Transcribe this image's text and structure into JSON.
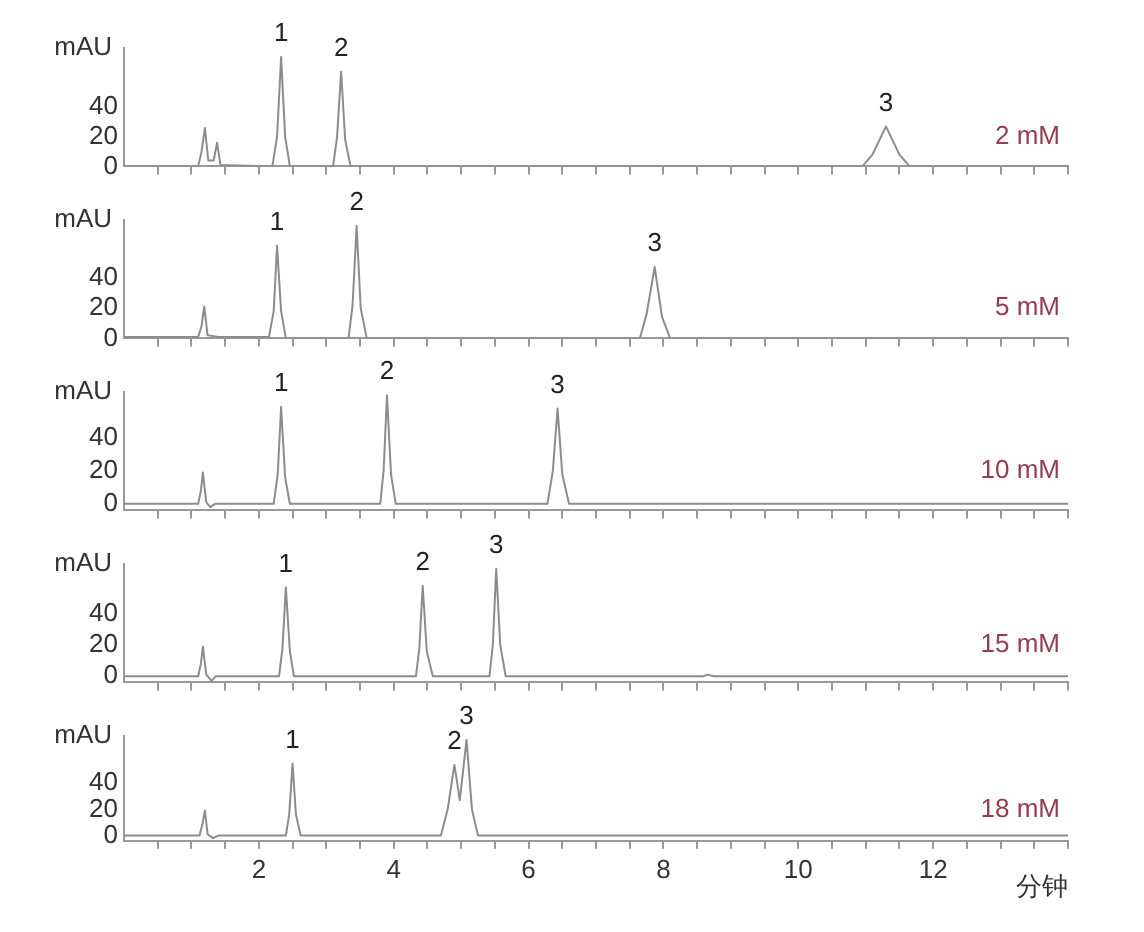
{
  "chart_data": [
    {
      "type": "line",
      "ylabel": "mAU",
      "xlim": [
        0,
        14
      ],
      "ylim": [
        0,
        80
      ],
      "yticks": [
        0,
        20,
        40
      ],
      "tick_labels": "y",
      "grid": false,
      "legend": false,
      "marker": "none",
      "line_style": "solid",
      "xticks": [
        {
          "value": 0.5,
          "label": null
        },
        {
          "value": 1,
          "label": null
        },
        {
          "value": 1.5,
          "label": null
        },
        2,
        {
          "value": 2.5,
          "label": null
        },
        {
          "value": 3,
          "label": null
        },
        {
          "value": 3.5,
          "label": null
        },
        4,
        {
          "value": 4.5,
          "label": null
        },
        {
          "value": 5,
          "label": null
        },
        {
          "value": 5.5,
          "label": null
        },
        6,
        {
          "value": 6.5,
          "label": null
        },
        {
          "value": 7,
          "label": null
        },
        {
          "value": 7.5,
          "label": null
        },
        8,
        {
          "value": 8.5,
          "label": null
        },
        {
          "value": 9,
          "label": null
        },
        {
          "value": 9.5,
          "label": null
        },
        10,
        {
          "value": 10.5,
          "label": null
        },
        {
          "value": 11,
          "label": null
        },
        {
          "value": 11.5,
          "label": null
        },
        12,
        {
          "value": 12.5,
          "label": null
        },
        {
          "value": 13,
          "label": null
        },
        {
          "value": 13.5,
          "label": null
        },
        {
          "value": 14,
          "label": null
        }
      ],
      "series": [
        {
          "color": "#8c8c8c",
          "x": [
            0,
            1.1,
            1.15,
            1.2,
            1.25,
            1.33,
            1.38,
            1.43,
            2.2,
            2.27,
            2.33,
            2.39,
            2.46,
            3.1,
            3.16,
            3.22,
            3.28,
            3.36,
            10.95,
            11.1,
            11.3,
            11.5,
            11.65,
            14
          ],
          "values": [
            0,
            0,
            10,
            26,
            4,
            4,
            16,
            1,
            0,
            20,
            74,
            20,
            0,
            0,
            20,
            64,
            18,
            0,
            0,
            8,
            27,
            8,
            0,
            0
          ]
        }
      ],
      "annotations": [
        "2 mM",
        {
          "text": "1",
          "x": 2.33,
          "y": 74
        },
        {
          "text": "2",
          "x": 3.22,
          "y": 64
        },
        {
          "text": "3",
          "x": 11.3,
          "y": 27
        }
      ]
    },
    {
      "type": "line",
      "ylabel": "mAU",
      "xlim": [
        0,
        14
      ],
      "ylim": [
        0,
        78
      ],
      "yticks": [
        0,
        20,
        40
      ],
      "tick_labels": "y",
      "grid": false,
      "legend": false,
      "marker": "none",
      "line_style": "solid",
      "xticks": [
        {
          "value": 0.5,
          "label": null
        },
        {
          "value": 1,
          "label": null
        },
        {
          "value": 1.5,
          "label": null
        },
        2,
        {
          "value": 2.5,
          "label": null
        },
        {
          "value": 3,
          "label": null
        },
        {
          "value": 3.5,
          "label": null
        },
        4,
        {
          "value": 4.5,
          "label": null
        },
        {
          "value": 5,
          "label": null
        },
        {
          "value": 5.5,
          "label": null
        },
        6,
        {
          "value": 6.5,
          "label": null
        },
        {
          "value": 7,
          "label": null
        },
        {
          "value": 7.5,
          "label": null
        },
        8,
        {
          "value": 8.5,
          "label": null
        },
        {
          "value": 9,
          "label": null
        },
        {
          "value": 9.5,
          "label": null
        },
        10,
        {
          "value": 10.5,
          "label": null
        },
        {
          "value": 11,
          "label": null
        },
        {
          "value": 11.5,
          "label": null
        },
        12,
        {
          "value": 12.5,
          "label": null
        },
        {
          "value": 13,
          "label": null
        },
        {
          "value": 13.5,
          "label": null
        },
        {
          "value": 14,
          "label": null
        }
      ],
      "series": [
        {
          "color": "#8c8c8c",
          "x": [
            0,
            1.1,
            1.15,
            1.19,
            1.24,
            1.4,
            2.15,
            2.22,
            2.27,
            2.33,
            2.4,
            3.33,
            3.39,
            3.45,
            3.51,
            3.6,
            7.65,
            7.75,
            7.87,
            7.98,
            8.1,
            14
          ],
          "values": [
            1,
            1,
            8,
            21,
            2,
            1,
            1,
            18,
            61,
            18,
            0,
            0,
            22,
            74,
            20,
            0,
            0,
            16,
            47,
            14,
            0,
            0
          ]
        }
      ],
      "annotations": [
        "5 mM",
        {
          "text": "1",
          "x": 2.27,
          "y": 61
        },
        {
          "text": "2",
          "x": 3.45,
          "y": 74
        },
        {
          "text": "3",
          "x": 7.87,
          "y": 47
        }
      ]
    },
    {
      "type": "line",
      "ylabel": "mAU",
      "xlim": [
        0,
        14
      ],
      "ylim": [
        -4,
        68
      ],
      "yticks": [
        0,
        20,
        40
      ],
      "tick_labels": "y",
      "grid": false,
      "legend": false,
      "marker": "none",
      "line_style": "solid",
      "xticks": [
        {
          "value": 0.5,
          "label": null
        },
        {
          "value": 1,
          "label": null
        },
        {
          "value": 1.5,
          "label": null
        },
        2,
        {
          "value": 2.5,
          "label": null
        },
        {
          "value": 3,
          "label": null
        },
        {
          "value": 3.5,
          "label": null
        },
        4,
        {
          "value": 4.5,
          "label": null
        },
        {
          "value": 5,
          "label": null
        },
        {
          "value": 5.5,
          "label": null
        },
        6,
        {
          "value": 6.5,
          "label": null
        },
        {
          "value": 7,
          "label": null
        },
        {
          "value": 7.5,
          "label": null
        },
        8,
        {
          "value": 8.5,
          "label": null
        },
        {
          "value": 9,
          "label": null
        },
        {
          "value": 9.5,
          "label": null
        },
        10,
        {
          "value": 10.5,
          "label": null
        },
        {
          "value": 11,
          "label": null
        },
        {
          "value": 11.5,
          "label": null
        },
        12,
        {
          "value": 12.5,
          "label": null
        },
        {
          "value": 13,
          "label": null
        },
        {
          "value": 13.5,
          "label": null
        },
        {
          "value": 14,
          "label": null
        }
      ],
      "series": [
        {
          "color": "#8c8c8c",
          "x": [
            0,
            1.1,
            1.14,
            1.17,
            1.22,
            1.28,
            1.35,
            2.22,
            2.28,
            2.33,
            2.39,
            2.46,
            3.8,
            3.85,
            3.9,
            3.96,
            4.03,
            6.28,
            6.36,
            6.43,
            6.5,
            6.6,
            14
          ],
          "values": [
            0,
            0,
            8,
            19,
            1,
            -2,
            0,
            0,
            18,
            59,
            16,
            0,
            0,
            20,
            66,
            18,
            0,
            0,
            20,
            58,
            18,
            0,
            0
          ]
        }
      ],
      "annotations": [
        "10 mM",
        {
          "text": "1",
          "x": 2.33,
          "y": 59
        },
        {
          "text": "2",
          "x": 3.9,
          "y": 66
        },
        {
          "text": "3",
          "x": 6.43,
          "y": 58
        }
      ]
    },
    {
      "type": "line",
      "ylabel": "mAU",
      "xlim": [
        0,
        14
      ],
      "ylim": [
        -4,
        72
      ],
      "yticks": [
        0,
        20,
        40
      ],
      "tick_labels": "y",
      "grid": false,
      "legend": false,
      "marker": "none",
      "line_style": "solid",
      "xticks": [
        {
          "value": 0.5,
          "label": null
        },
        {
          "value": 1,
          "label": null
        },
        {
          "value": 1.5,
          "label": null
        },
        2,
        {
          "value": 2.5,
          "label": null
        },
        {
          "value": 3,
          "label": null
        },
        {
          "value": 3.5,
          "label": null
        },
        4,
        {
          "value": 4.5,
          "label": null
        },
        {
          "value": 5,
          "label": null
        },
        {
          "value": 5.5,
          "label": null
        },
        6,
        {
          "value": 6.5,
          "label": null
        },
        {
          "value": 7,
          "label": null
        },
        {
          "value": 7.5,
          "label": null
        },
        8,
        {
          "value": 8.5,
          "label": null
        },
        {
          "value": 9,
          "label": null
        },
        {
          "value": 9.5,
          "label": null
        },
        10,
        {
          "value": 10.5,
          "label": null
        },
        {
          "value": 11,
          "label": null
        },
        {
          "value": 11.5,
          "label": null
        },
        12,
        {
          "value": 12.5,
          "label": null
        },
        {
          "value": 13,
          "label": null
        },
        {
          "value": 13.5,
          "label": null
        },
        {
          "value": 14,
          "label": null
        }
      ],
      "series": [
        {
          "color": "#8c8c8c",
          "x": [
            0,
            1.1,
            1.14,
            1.17,
            1.22,
            1.3,
            1.36,
            2.3,
            2.35,
            2.4,
            2.46,
            2.52,
            4.33,
            4.38,
            4.43,
            4.49,
            4.58,
            5.42,
            5.47,
            5.52,
            5.58,
            5.66,
            8.6,
            8.65,
            8.75,
            14
          ],
          "values": [
            0,
            0,
            8,
            19,
            1,
            -3,
            0,
            0,
            18,
            57,
            16,
            0,
            0,
            18,
            58,
            16,
            0,
            0,
            20,
            69,
            20,
            0,
            0,
            1,
            0,
            0
          ]
        }
      ],
      "annotations": [
        "15 mM",
        {
          "text": "1",
          "x": 2.4,
          "y": 57
        },
        {
          "text": "2",
          "x": 4.43,
          "y": 58
        },
        {
          "text": "3",
          "x": 5.52,
          "y": 69
        }
      ]
    },
    {
      "type": "line",
      "ylabel": "mAU",
      "xlabel": "分钟",
      "xlim": [
        0,
        14
      ],
      "ylim": [
        -4,
        76
      ],
      "yticks": [
        0,
        20,
        40
      ],
      "grid": false,
      "legend": false,
      "marker": "none",
      "line_style": "solid",
      "xticks": [
        {
          "value": 0.5,
          "label": null
        },
        {
          "value": 1,
          "label": null
        },
        {
          "value": 1.5,
          "label": null
        },
        2,
        {
          "value": 2.5,
          "label": null
        },
        {
          "value": 3,
          "label": null
        },
        {
          "value": 3.5,
          "label": null
        },
        4,
        {
          "value": 4.5,
          "label": null
        },
        {
          "value": 5,
          "label": null
        },
        {
          "value": 5.5,
          "label": null
        },
        6,
        {
          "value": 6.5,
          "label": null
        },
        {
          "value": 7,
          "label": null
        },
        {
          "value": 7.5,
          "label": null
        },
        8,
        {
          "value": 8.5,
          "label": null
        },
        {
          "value": 9,
          "label": null
        },
        {
          "value": 9.5,
          "label": null
        },
        10,
        {
          "value": 10.5,
          "label": null
        },
        {
          "value": 11,
          "label": null
        },
        {
          "value": 11.5,
          "label": null
        },
        12,
        {
          "value": 12.5,
          "label": null
        },
        {
          "value": 13,
          "label": null
        },
        {
          "value": 13.5,
          "label": null
        },
        {
          "value": 14,
          "label": null
        }
      ],
      "series": [
        {
          "color": "#8c8c8c",
          "x": [
            0,
            1.12,
            1.16,
            1.2,
            1.24,
            1.32,
            1.4,
            2.4,
            2.45,
            2.5,
            2.55,
            2.62,
            4.7,
            4.8,
            4.9,
            4.98,
            5.08,
            5.16,
            5.25,
            14
          ],
          "values": [
            0,
            0,
            8,
            19,
            1,
            -2,
            0,
            0,
            16,
            55,
            16,
            0,
            0,
            20,
            54,
            27,
            73,
            20,
            0,
            0
          ]
        }
      ],
      "annotations": [
        "18 mM",
        {
          "text": "1",
          "x": 2.5,
          "y": 55
        },
        {
          "text": "2",
          "x": 4.9,
          "y": 54
        },
        {
          "text": "3",
          "x": 5.08,
          "y": 73
        }
      ]
    }
  ]
}
